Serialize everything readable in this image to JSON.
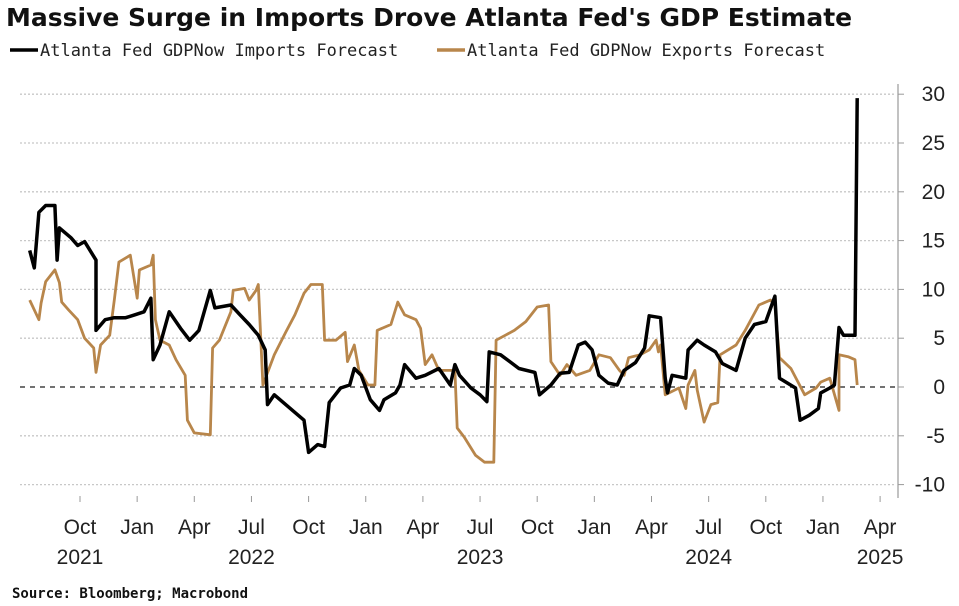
{
  "chart_data": {
    "type": "line",
    "title": "Massive Surge in Imports Drove Atlanta Fed's GDP Estimate",
    "source": "Source: Bloomberg; Macrobond",
    "xlabel": "",
    "ylabel": "",
    "ylim": [
      -10,
      30
    ],
    "yticks": [
      30,
      25,
      20,
      15,
      10,
      5,
      0,
      -5,
      -10
    ],
    "y_axis_side": "right",
    "grid": true,
    "legend_position": "top",
    "xlim": [
      2021.53,
      2025.2
    ],
    "xticks": [
      {
        "x": 2021.75,
        "month": "Oct",
        "year": "2021"
      },
      {
        "x": 2022.0,
        "month": "Jan",
        "year": ""
      },
      {
        "x": 2022.25,
        "month": "Apr",
        "year": ""
      },
      {
        "x": 2022.5,
        "month": "Jul",
        "year": "2022"
      },
      {
        "x": 2022.75,
        "month": "Oct",
        "year": ""
      },
      {
        "x": 2023.0,
        "month": "Jan",
        "year": ""
      },
      {
        "x": 2023.25,
        "month": "Apr",
        "year": ""
      },
      {
        "x": 2023.5,
        "month": "Jul",
        "year": "2023"
      },
      {
        "x": 2023.75,
        "month": "Oct",
        "year": ""
      },
      {
        "x": 2024.0,
        "month": "Jan",
        "year": ""
      },
      {
        "x": 2024.25,
        "month": "Apr",
        "year": ""
      },
      {
        "x": 2024.5,
        "month": "Jul",
        "year": "2024"
      },
      {
        "x": 2024.75,
        "month": "Oct",
        "year": ""
      },
      {
        "x": 2025.0,
        "month": "Jan",
        "year": ""
      },
      {
        "x": 2025.25,
        "month": "Apr",
        "year": "2025"
      }
    ],
    "series": [
      {
        "name": "Atlanta Fed GDPNow Imports Forecast",
        "color": "#000000",
        "points": [
          [
            2021.53,
            14.0
          ],
          [
            2021.55,
            12.2
          ],
          [
            2021.57,
            17.9
          ],
          [
            2021.6,
            18.6
          ],
          [
            2021.64,
            18.6
          ],
          [
            2021.65,
            13.0
          ],
          [
            2021.66,
            16.3
          ],
          [
            2021.71,
            15.3
          ],
          [
            2021.74,
            14.5
          ],
          [
            2021.77,
            14.9
          ],
          [
            2021.82,
            13.0
          ],
          [
            2021.82,
            5.8
          ],
          [
            2021.86,
            6.9
          ],
          [
            2021.9,
            7.1
          ],
          [
            2021.95,
            7.1
          ],
          [
            2021.99,
            7.4
          ],
          [
            2022.03,
            7.7
          ],
          [
            2022.06,
            9.1
          ],
          [
            2022.07,
            2.8
          ],
          [
            2022.1,
            4.3
          ],
          [
            2022.14,
            7.7
          ],
          [
            2022.19,
            6.0
          ],
          [
            2022.23,
            4.8
          ],
          [
            2022.27,
            5.8
          ],
          [
            2022.32,
            9.9
          ],
          [
            2022.34,
            8.1
          ],
          [
            2022.41,
            8.4
          ],
          [
            2022.45,
            7.4
          ],
          [
            2022.49,
            6.4
          ],
          [
            2022.53,
            5.3
          ],
          [
            2022.56,
            3.8
          ],
          [
            2022.57,
            -1.8
          ],
          [
            2022.6,
            -0.8
          ],
          [
            2022.65,
            -1.8
          ],
          [
            2022.69,
            -2.6
          ],
          [
            2022.73,
            -3.4
          ],
          [
            2022.75,
            -6.7
          ],
          [
            2022.79,
            -5.9
          ],
          [
            2022.82,
            -6.1
          ],
          [
            2022.84,
            -1.6
          ],
          [
            2022.89,
            -0.1
          ],
          [
            2022.93,
            0.2
          ],
          [
            2022.95,
            1.9
          ],
          [
            2022.98,
            1.2
          ],
          [
            2023.02,
            -1.3
          ],
          [
            2023.06,
            -2.4
          ],
          [
            2023.08,
            -1.3
          ],
          [
            2023.13,
            -0.6
          ],
          [
            2023.15,
            0.2
          ],
          [
            2023.17,
            2.3
          ],
          [
            2023.22,
            0.9
          ],
          [
            2023.26,
            1.2
          ],
          [
            2023.32,
            1.9
          ],
          [
            2023.37,
            0.2
          ],
          [
            2023.39,
            2.3
          ],
          [
            2023.41,
            1.2
          ],
          [
            2023.46,
            -0.1
          ],
          [
            2023.5,
            -0.8
          ],
          [
            2023.53,
            -1.5
          ],
          [
            2023.54,
            3.6
          ],
          [
            2023.59,
            3.3
          ],
          [
            2023.63,
            2.6
          ],
          [
            2023.67,
            1.9
          ],
          [
            2023.74,
            1.5
          ],
          [
            2023.76,
            -0.8
          ],
          [
            2023.81,
            0.2
          ],
          [
            2023.85,
            1.4
          ],
          [
            2023.89,
            1.5
          ],
          [
            2023.93,
            4.3
          ],
          [
            2023.96,
            4.6
          ],
          [
            2023.99,
            3.8
          ],
          [
            2024.02,
            1.2
          ],
          [
            2024.06,
            0.4
          ],
          [
            2024.1,
            0.2
          ],
          [
            2024.13,
            1.7
          ],
          [
            2024.18,
            2.5
          ],
          [
            2024.22,
            4.0
          ],
          [
            2024.24,
            7.3
          ],
          [
            2024.29,
            7.1
          ],
          [
            2024.31,
            0.9
          ],
          [
            2024.32,
            -0.6
          ],
          [
            2024.34,
            1.2
          ],
          [
            2024.4,
            0.9
          ],
          [
            2024.41,
            3.8
          ],
          [
            2024.45,
            4.8
          ],
          [
            2024.48,
            4.3
          ],
          [
            2024.53,
            3.6
          ],
          [
            2024.56,
            2.4
          ],
          [
            2024.62,
            1.7
          ],
          [
            2024.66,
            5.0
          ],
          [
            2024.7,
            6.4
          ],
          [
            2024.75,
            6.7
          ],
          [
            2024.79,
            9.3
          ],
          [
            2024.81,
            0.9
          ],
          [
            2024.88,
            -0.1
          ],
          [
            2024.9,
            -3.4
          ],
          [
            2024.94,
            -2.9
          ],
          [
            2024.98,
            -2.2
          ],
          [
            2024.99,
            -0.6
          ],
          [
            2025.03,
            -0.1
          ],
          [
            2025.05,
            0.2
          ],
          [
            2025.07,
            6.1
          ],
          [
            2025.09,
            5.3
          ],
          [
            2025.14,
            5.3
          ],
          [
            2025.15,
            29.6
          ]
        ]
      },
      {
        "name": "Atlanta Fed GDPNow Exports Forecast",
        "color": "#B8864B",
        "points": [
          [
            2021.53,
            8.9
          ],
          [
            2021.57,
            6.9
          ],
          [
            2021.58,
            8.6
          ],
          [
            2021.6,
            10.8
          ],
          [
            2021.64,
            12.0
          ],
          [
            2021.66,
            10.7
          ],
          [
            2021.67,
            8.7
          ],
          [
            2021.7,
            7.9
          ],
          [
            2021.74,
            6.9
          ],
          [
            2021.77,
            5.0
          ],
          [
            2021.81,
            4.0
          ],
          [
            2021.82,
            1.5
          ],
          [
            2021.84,
            4.3
          ],
          [
            2021.88,
            5.3
          ],
          [
            2021.9,
            8.9
          ],
          [
            2021.92,
            12.8
          ],
          [
            2021.97,
            13.5
          ],
          [
            2022.0,
            9.1
          ],
          [
            2022.01,
            12.0
          ],
          [
            2022.06,
            12.5
          ],
          [
            2022.07,
            13.5
          ],
          [
            2022.08,
            6.9
          ],
          [
            2022.1,
            4.8
          ],
          [
            2022.14,
            4.3
          ],
          [
            2022.17,
            2.8
          ],
          [
            2022.21,
            1.2
          ],
          [
            2022.22,
            -3.4
          ],
          [
            2022.25,
            -4.7
          ],
          [
            2022.32,
            -4.9
          ],
          [
            2022.33,
            4.0
          ],
          [
            2022.36,
            4.8
          ],
          [
            2022.41,
            7.7
          ],
          [
            2022.42,
            9.9
          ],
          [
            2022.47,
            10.1
          ],
          [
            2022.49,
            8.9
          ],
          [
            2022.52,
            9.9
          ],
          [
            2022.53,
            10.5
          ],
          [
            2022.55,
            0.2
          ],
          [
            2022.6,
            3.3
          ],
          [
            2022.65,
            5.6
          ],
          [
            2022.69,
            7.4
          ],
          [
            2022.73,
            9.6
          ],
          [
            2022.76,
            10.5
          ],
          [
            2022.81,
            10.5
          ],
          [
            2022.82,
            4.8
          ],
          [
            2022.87,
            4.8
          ],
          [
            2022.91,
            5.6
          ],
          [
            2022.92,
            2.6
          ],
          [
            2022.95,
            4.3
          ],
          [
            2022.97,
            1.7
          ],
          [
            2023.01,
            0.2
          ],
          [
            2023.04,
            0.2
          ],
          [
            2023.05,
            5.8
          ],
          [
            2023.11,
            6.4
          ],
          [
            2023.14,
            8.7
          ],
          [
            2023.17,
            7.4
          ],
          [
            2023.22,
            6.9
          ],
          [
            2023.24,
            6.0
          ],
          [
            2023.26,
            2.3
          ],
          [
            2023.29,
            3.3
          ],
          [
            2023.32,
            1.7
          ],
          [
            2023.39,
            1.7
          ],
          [
            2023.4,
            -4.2
          ],
          [
            2023.43,
            -5.1
          ],
          [
            2023.48,
            -7.0
          ],
          [
            2023.52,
            -7.7
          ],
          [
            2023.56,
            -7.7
          ],
          [
            2023.57,
            4.8
          ],
          [
            2023.61,
            5.3
          ],
          [
            2023.65,
            5.8
          ],
          [
            2023.7,
            6.7
          ],
          [
            2023.75,
            8.2
          ],
          [
            2023.8,
            8.4
          ],
          [
            2023.81,
            2.6
          ],
          [
            2023.85,
            1.2
          ],
          [
            2023.88,
            2.3
          ],
          [
            2023.92,
            1.2
          ],
          [
            2023.98,
            1.7
          ],
          [
            2024.02,
            3.3
          ],
          [
            2024.07,
            3.0
          ],
          [
            2024.11,
            1.7
          ],
          [
            2024.13,
            1.2
          ],
          [
            2024.15,
            3.0
          ],
          [
            2024.2,
            3.3
          ],
          [
            2024.24,
            3.8
          ],
          [
            2024.27,
            4.8
          ],
          [
            2024.28,
            3.6
          ],
          [
            2024.29,
            4.3
          ],
          [
            2024.31,
            -0.8
          ],
          [
            2024.37,
            -0.1
          ],
          [
            2024.4,
            -2.2
          ],
          [
            2024.41,
            0.2
          ],
          [
            2024.44,
            1.7
          ],
          [
            2024.45,
            -0.3
          ],
          [
            2024.48,
            -3.6
          ],
          [
            2024.51,
            -1.8
          ],
          [
            2024.54,
            -1.6
          ],
          [
            2024.55,
            3.3
          ],
          [
            2024.62,
            4.3
          ],
          [
            2024.66,
            5.8
          ],
          [
            2024.72,
            8.4
          ],
          [
            2024.77,
            8.9
          ],
          [
            2024.79,
            8.4
          ],
          [
            2024.81,
            3.0
          ],
          [
            2024.86,
            1.9
          ],
          [
            2024.92,
            -0.8
          ],
          [
            2024.97,
            -0.1
          ],
          [
            2024.99,
            0.5
          ],
          [
            2025.03,
            0.9
          ],
          [
            2025.07,
            -2.4
          ],
          [
            2025.07,
            3.3
          ],
          [
            2025.11,
            3.1
          ],
          [
            2025.14,
            2.8
          ],
          [
            2025.15,
            0.2
          ]
        ]
      }
    ]
  }
}
